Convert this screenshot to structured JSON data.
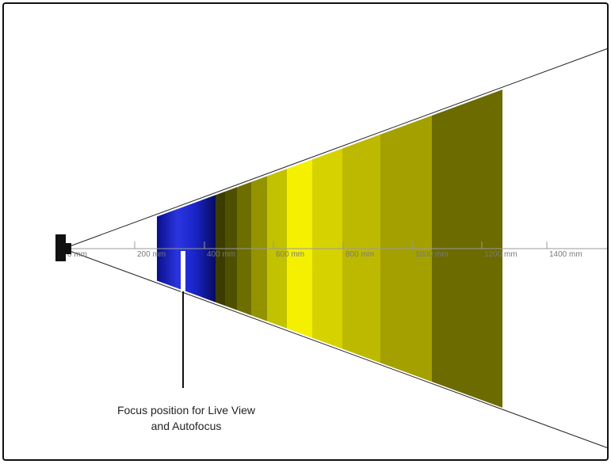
{
  "axis": {
    "ticks": [
      "0 mm",
      "200 mm",
      "400 mm",
      "600 mm",
      "800 mm",
      "1000 mm",
      "1200 mm",
      "1400 mm"
    ]
  },
  "callout": {
    "line1": "Focus position for Live View",
    "line2": "and Autofocus"
  },
  "colors": {
    "frame": "#111111",
    "camera": "#111111",
    "cone_lines": "#222222",
    "axis": "#9a9a9a",
    "blue_zone": "#1f2fd0",
    "yellow_peak": "#f4f000",
    "olive_far": "#6b6b00",
    "focus_marker": "#ffffff"
  }
}
